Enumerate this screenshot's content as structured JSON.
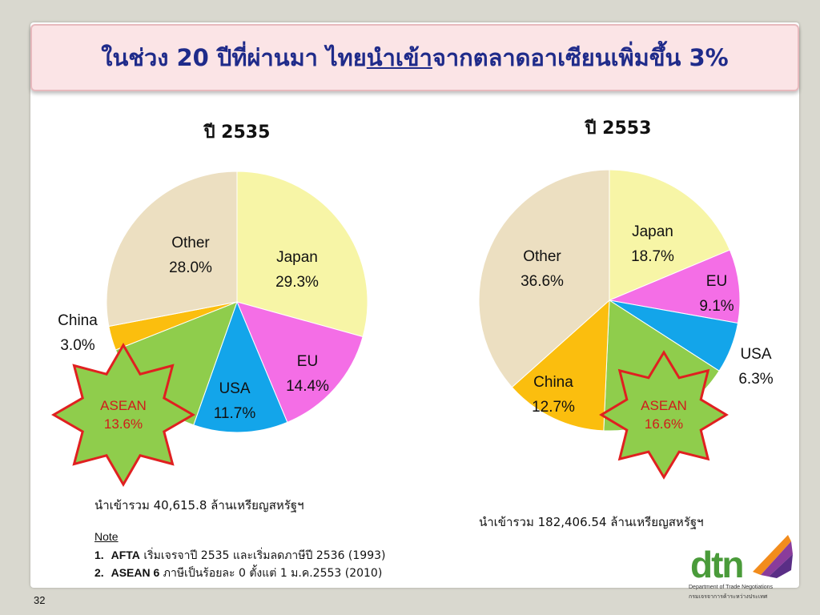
{
  "title": {
    "pre": "ในช่วง 20 ปีที่ผ่านมา ไทย",
    "underlined": "นำเข้า",
    "post": "จากตลาดอาเซียนเพิ่มขึ้น 3%"
  },
  "chart_data": [
    {
      "type": "pie",
      "title": "ปี 2535",
      "unit": "%",
      "slices": [
        {
          "name": "Japan",
          "value": 29.3,
          "color": "#f7f5a6",
          "label": "29.3%"
        },
        {
          "name": "EU",
          "value": 14.4,
          "color": "#f46ee6",
          "label": "14.4%"
        },
        {
          "name": "USA",
          "value": 11.7,
          "color": "#13a5ea",
          "label": "11.7%"
        },
        {
          "name": "ASEAN",
          "value": 13.6,
          "color": "#8fcd4c",
          "label": "13.6%"
        },
        {
          "name": "China",
          "value": 3.0,
          "color": "#fbbe0e",
          "label": "3.0%"
        },
        {
          "name": "Other",
          "value": 28.0,
          "color": "#ecdfc1",
          "label": "28.0%"
        }
      ]
    },
    {
      "type": "pie",
      "title": "ปี 2553",
      "unit": "%",
      "slices": [
        {
          "name": "Japan",
          "value": 18.7,
          "color": "#f7f5a6",
          "label": "18.7%"
        },
        {
          "name": "EU",
          "value": 9.1,
          "color": "#f46ee6",
          "label": "9.1%"
        },
        {
          "name": "USA",
          "value": 6.3,
          "color": "#13a5ea",
          "label": "6.3%"
        },
        {
          "name": "ASEAN",
          "value": 16.6,
          "color": "#8fcd4c",
          "label": "16.6%"
        },
        {
          "name": "China",
          "value": 12.7,
          "color": "#fbbe0e",
          "label": "12.7%"
        },
        {
          "name": "Other",
          "value": 36.6,
          "color": "#ecdfc1",
          "label": "36.6%"
        }
      ]
    }
  ],
  "totals": {
    "left": "นำเข้ารวม 40,615.8 ล้านเหรียญสหรัฐฯ",
    "right": "นำเข้ารวม 182,406.54 ล้านเหรียญสหรัฐฯ"
  },
  "notes": {
    "heading": "Note",
    "items": [
      {
        "num": "1.",
        "bold": "AFTA",
        "text": " เริ่มเจรจาปี 2535 และเริ่มลดภาษีปี 2536 (1993)"
      },
      {
        "num": "2.",
        "bold": "ASEAN 6",
        "text": " ภาษีเป็นร้อยละ 0 ตั้งแต่ 1 ม.ค.2553 (2010)"
      }
    ]
  },
  "page_number": "32",
  "logo": {
    "word": "dtn",
    "en": "Department of Trade Negotiations",
    "th": "กรมเจรจาการค้าระหว่างประเทศ"
  },
  "colors": {
    "title_text": "#1f2b8a",
    "title_bg": "#fbe4e6",
    "star_fill": "#8fcd4c",
    "star_stroke": "#e02020",
    "star_text": "#d01b1b"
  }
}
